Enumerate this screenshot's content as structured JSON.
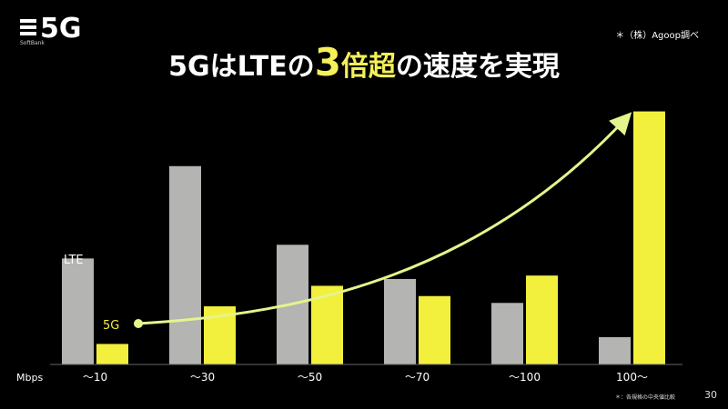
{
  "logo": {
    "text": "5G",
    "sub": "SoftBank"
  },
  "source": "＊（株）Agoop調べ",
  "title": {
    "part1": "5GはLTEの",
    "number": "3",
    "highlight": "倍超",
    "part2": "の速度を実現"
  },
  "footnote": "＊：各規格の中央値比較",
  "page_number": "30",
  "colors": {
    "lte": "#b4b4b2",
    "five_g": "#f2f03c",
    "arrow": "#e6f48c",
    "background": "#000000"
  },
  "chart_data": {
    "type": "bar",
    "xlabel": "Mbps",
    "categories": [
      "〜10",
      "〜30",
      "〜50",
      "〜70",
      "〜100",
      "100〜"
    ],
    "series": [
      {
        "name": "LTE",
        "values": [
          31,
          58,
          35,
          25,
          18,
          8
        ]
      },
      {
        "name": "5G",
        "values": [
          6,
          17,
          23,
          20,
          26,
          74
        ]
      }
    ],
    "ylim": [
      0,
      80
    ],
    "grid": false,
    "legend": "inline-labels",
    "trend_arrow": {
      "direction": "up-right",
      "series": "5G"
    }
  }
}
